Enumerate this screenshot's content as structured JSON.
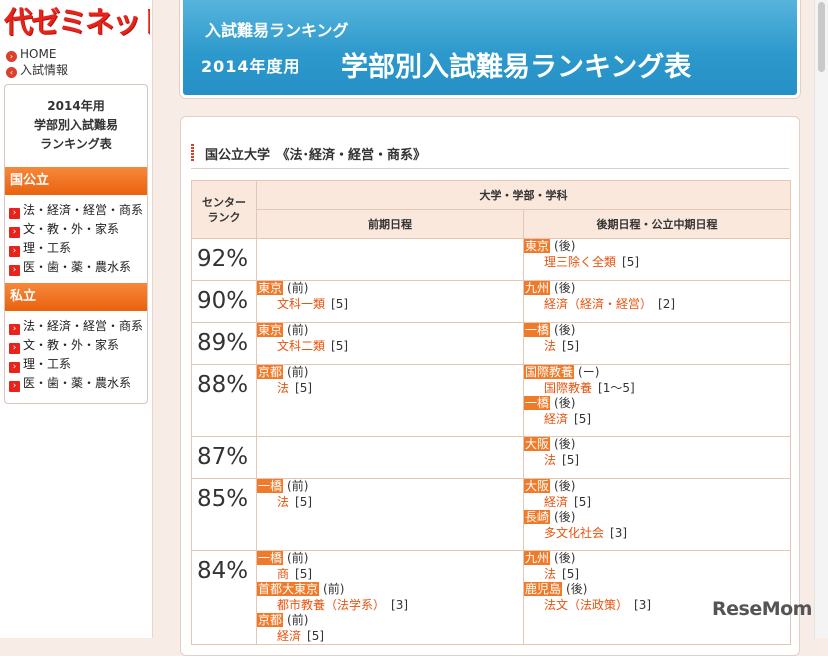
{
  "brand": {
    "logo": "代ゼミネット"
  },
  "nav": {
    "home": "HOME",
    "info": "入試情報",
    "icon": "circle-arrow-icon"
  },
  "sidebar": {
    "title_lines": [
      "2014年用",
      "学部別入試難易",
      "ランキング表"
    ],
    "public": {
      "heading": "国公立",
      "items": [
        "法・経済・経営・商系",
        "文・教・外・家系",
        "理・工系",
        "医・歯・薬・農水系"
      ]
    },
    "private": {
      "heading": "私立",
      "items": [
        "法・経済・経営・商系",
        "文・教・外・家系",
        "理・工系",
        "医・歯・薬・農水系"
      ]
    }
  },
  "header": {
    "subtitle": "入試難易ランキング",
    "year_label": "2014年度用",
    "title": "学部別入試難易ランキング表",
    "background_color": "#2c98cb"
  },
  "section": {
    "title": "国公立大学　《法･経済・経営・商系》"
  },
  "table": {
    "col_rank": "センター\nランク",
    "col_group": "大学・学部・学科",
    "col_early": "前期日程",
    "col_late": "後期日程・公立中期日程",
    "rows": [
      {
        "pct": "92%",
        "early": [],
        "late": [
          {
            "uni": "東京",
            "kind": "(後)",
            "dept": "理三除く全類",
            "count": "[5]"
          }
        ]
      },
      {
        "pct": "90%",
        "early": [
          {
            "uni": "東京",
            "kind": "(前)",
            "dept": "文科一類",
            "count": "[5]"
          }
        ],
        "late": [
          {
            "uni": "九州",
            "kind": "(後)",
            "dept": "経済（経済・経営）",
            "count": "[2]"
          }
        ]
      },
      {
        "pct": "89%",
        "early": [
          {
            "uni": "東京",
            "kind": "(前)",
            "dept": "文科二類",
            "count": "[5]"
          }
        ],
        "late": [
          {
            "uni": "一橋",
            "kind": "(後)",
            "dept": "法",
            "count": "[5]"
          }
        ]
      },
      {
        "pct": "88%",
        "early": [
          {
            "uni": "京都",
            "kind": "(前)",
            "dept": "法",
            "count": "[5]"
          }
        ],
        "late": [
          {
            "uni": "国際教養",
            "kind": "(ー)",
            "dept": "国際教養",
            "count": "[1〜5]"
          },
          {
            "uni": "一橋",
            "kind": "(後)",
            "dept": "経済",
            "count": "[5]"
          }
        ]
      },
      {
        "pct": "87%",
        "early": [],
        "late": [
          {
            "uni": "大阪",
            "kind": "(後)",
            "dept": "法",
            "count": "[5]"
          }
        ]
      },
      {
        "pct": "85%",
        "early": [
          {
            "uni": "一橋",
            "kind": "(前)",
            "dept": "法",
            "count": "[5]"
          }
        ],
        "late": [
          {
            "uni": "大阪",
            "kind": "(後)",
            "dept": "経済",
            "count": "[5]"
          },
          {
            "uni": "長崎",
            "kind": "(後)",
            "dept": "多文化社会",
            "count": "[3]"
          }
        ]
      },
      {
        "pct": "84%",
        "early": [
          {
            "uni": "一橋",
            "kind": "(前)",
            "dept": "商",
            "count": "[5]"
          },
          {
            "uni": "首都大東京",
            "kind": "(前)",
            "dept": "都市教養（法学系）",
            "count": "[3]"
          },
          {
            "uni": "京都",
            "kind": "(前)",
            "dept": "経済",
            "count": "[5]"
          }
        ],
        "late": [
          {
            "uni": "九州",
            "kind": "(後)",
            "dept": "法",
            "count": "[5]"
          },
          {
            "uni": "鹿児島",
            "kind": "(後)",
            "dept": "法文（法政策）",
            "count": "[3]"
          }
        ]
      }
    ]
  },
  "watermark": "ReseMom",
  "colors": {
    "accent": "#ef7b2a",
    "dept_text": "#e8530f",
    "logo": "#e8231a",
    "table_header": "#fbe8dc"
  }
}
